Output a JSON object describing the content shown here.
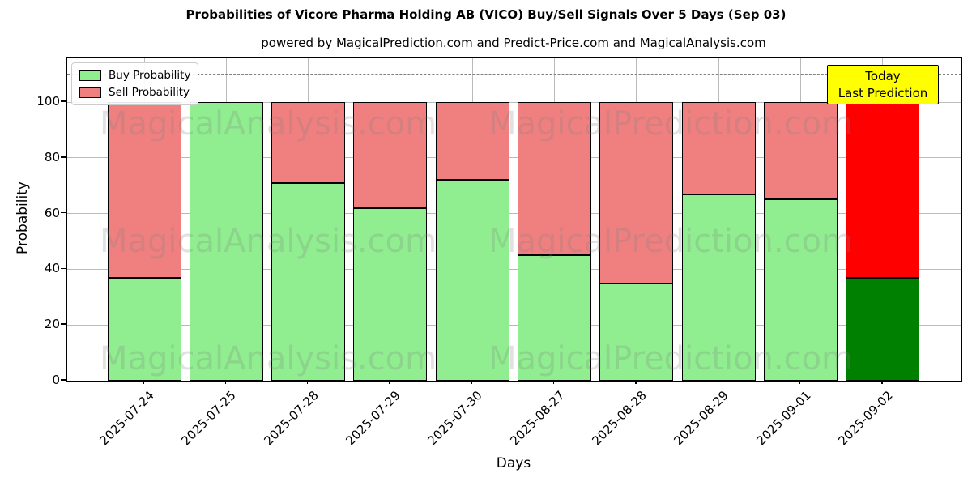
{
  "chart_data": {
    "type": "bar",
    "stacked": true,
    "title": "Probabilities of Vicore Pharma Holding AB (VICO) Buy/Sell Signals Over 5 Days (Sep 03)",
    "subtitle": "powered by MagicalPrediction.com and Predict-Price.com and MagicalAnalysis.com",
    "xlabel": "Days",
    "ylabel": "Probability",
    "categories": [
      "2025-07-24",
      "2025-07-25",
      "2025-07-28",
      "2025-07-29",
      "2025-07-30",
      "2025-08-27",
      "2025-08-28",
      "2025-08-29",
      "2025-09-01",
      "2025-09-02"
    ],
    "series": [
      {
        "name": "Buy Probability",
        "color": "#90EE90",
        "values": [
          37,
          100,
          71,
          62,
          72,
          45,
          35,
          67,
          65,
          37
        ]
      },
      {
        "name": "Sell Probability",
        "color": "#F08080",
        "values": [
          63,
          0,
          29,
          38,
          28,
          55,
          65,
          33,
          35,
          63
        ]
      }
    ],
    "today_bar": {
      "index": 9,
      "category": "2025-09-02",
      "buy_color": "#008000",
      "sell_color": "#FF0000"
    },
    "y_ticks": [
      0,
      20,
      40,
      60,
      80,
      100
    ],
    "ylim": [
      0,
      116
    ],
    "dashed_line_y": 110,
    "grid": true,
    "legend_position": "upper left",
    "annotation": {
      "line1": "Today",
      "line2": "Last Prediction",
      "bg_color": "#FFFF00"
    },
    "watermarks": {
      "left_text": "MagicalAnalysis.com",
      "right_text": "MagicalPrediction.com",
      "rows": 3
    }
  },
  "colors": {
    "buy": "#90EE90",
    "sell": "#F08080",
    "today_buy": "#008000",
    "today_sell": "#FF0000",
    "annotation_bg": "#FFFF00",
    "grid": "#BBBBBB",
    "dashed_line": "#7F7F7F",
    "spine": "#000000"
  }
}
